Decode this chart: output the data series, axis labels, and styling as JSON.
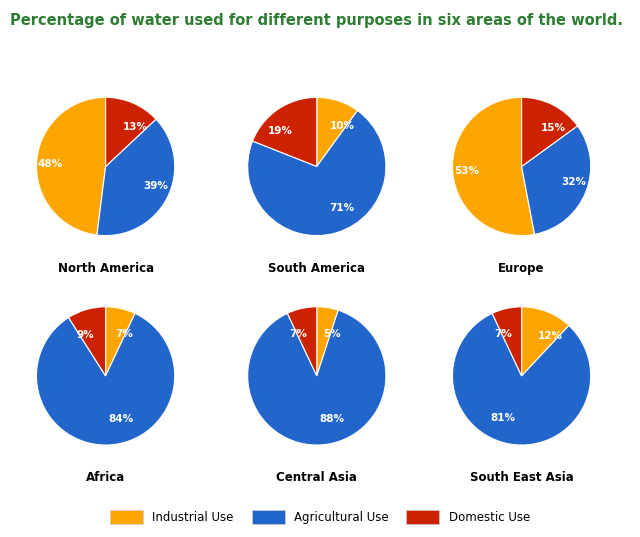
{
  "title": "Percentage of water used for different purposes in six areas of the world.",
  "title_color": "#2e7d32",
  "background_color": "#ffffff",
  "colors": [
    "#FFA500",
    "#2266CC",
    "#CC2200"
  ],
  "regions": [
    {
      "name": "North America",
      "values": [
        48,
        39,
        13
      ],
      "startangle": 90,
      "counterclock": true
    },
    {
      "name": "South America",
      "values": [
        10,
        71,
        19
      ],
      "startangle": 90,
      "counterclock": false
    },
    {
      "name": "Europe",
      "values": [
        53,
        32,
        15
      ],
      "startangle": 90,
      "counterclock": true
    },
    {
      "name": "Africa",
      "values": [
        7,
        84,
        9
      ],
      "startangle": 90,
      "counterclock": false
    },
    {
      "name": "Central Asia",
      "values": [
        5,
        88,
        7
      ],
      "startangle": 90,
      "counterclock": false
    },
    {
      "name": "South East Asia",
      "values": [
        12,
        81,
        7
      ],
      "startangle": 90,
      "counterclock": false
    }
  ],
  "legend_labels": [
    "Industrial Use",
    "Agricultural Use",
    "Domestic Use"
  ],
  "label_pcts": [
    [
      "48%",
      "39%",
      "13%"
    ],
    [
      "10%",
      "71%",
      "19%"
    ],
    [
      "53%",
      "32%",
      "15%"
    ],
    [
      "7%",
      "84%",
      "9%"
    ],
    [
      "5%",
      "88%",
      "7%"
    ],
    [
      "12%",
      "81%",
      "7%"
    ]
  ]
}
